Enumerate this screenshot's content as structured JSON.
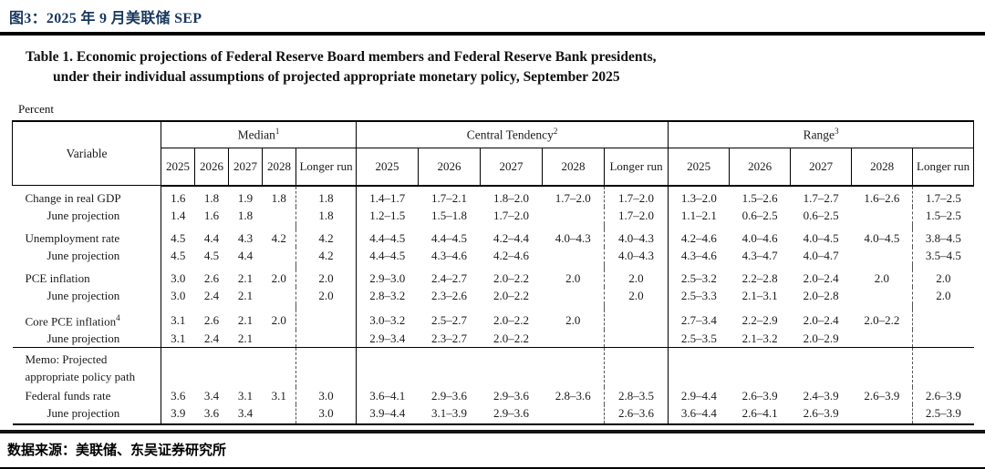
{
  "header": {
    "figure_title": "图3：2025 年 9 月美联储 SEP"
  },
  "table": {
    "title_line1": "Table 1. Economic projections of Federal Reserve Board members and Federal Reserve Bank presidents,",
    "title_line2": "under their individual assumptions of projected appropriate monetary policy, September 2025",
    "unit_label": "Percent",
    "variable_header": "Variable",
    "sections": [
      {
        "label": "Median",
        "sup": "1"
      },
      {
        "label": "Central Tendency",
        "sup": "2"
      },
      {
        "label": "Range",
        "sup": "3"
      }
    ],
    "years": [
      "2025",
      "2026",
      "2027",
      "2028",
      "Longer run"
    ],
    "rows": [
      {
        "label": "Change in real GDP",
        "cells": [
          "1.6",
          "1.8",
          "1.9",
          "1.8",
          "1.8",
          "1.4–1.7",
          "1.7–2.1",
          "1.8–2.0",
          "1.7–2.0",
          "1.7–2.0",
          "1.3–2.0",
          "1.5–2.6",
          "1.7–2.7",
          "1.6–2.6",
          "1.7–2.5"
        ]
      },
      {
        "label": "June projection",
        "indent": true,
        "gap_after": true,
        "cells": [
          "1.4",
          "1.6",
          "1.8",
          "",
          "1.8",
          "1.2–1.5",
          "1.5–1.8",
          "1.7–2.0",
          "",
          "1.7–2.0",
          "1.1–2.1",
          "0.6–2.5",
          "0.6–2.5",
          "",
          "1.5–2.5"
        ]
      },
      {
        "label": "Unemployment rate",
        "cells": [
          "4.5",
          "4.4",
          "4.3",
          "4.2",
          "4.2",
          "4.4–4.5",
          "4.4–4.5",
          "4.2–4.4",
          "4.0–4.3",
          "4.0–4.3",
          "4.2–4.6",
          "4.0–4.6",
          "4.0–4.5",
          "4.0–4.5",
          "3.8–4.5"
        ]
      },
      {
        "label": "June projection",
        "indent": true,
        "gap_after": true,
        "cells": [
          "4.5",
          "4.5",
          "4.4",
          "",
          "4.2",
          "4.4–4.5",
          "4.3–4.6",
          "4.2–4.6",
          "",
          "4.0–4.3",
          "4.3–4.6",
          "4.3–4.7",
          "4.0–4.7",
          "",
          "3.5–4.5"
        ]
      },
      {
        "label": "PCE inflation",
        "cells": [
          "3.0",
          "2.6",
          "2.1",
          "2.0",
          "2.0",
          "2.9–3.0",
          "2.4–2.7",
          "2.0–2.2",
          "2.0",
          "2.0",
          "2.5–3.2",
          "2.2–2.8",
          "2.0–2.4",
          "2.0",
          "2.0"
        ]
      },
      {
        "label": "June projection",
        "indent": true,
        "gap_after": true,
        "cells": [
          "3.0",
          "2.4",
          "2.1",
          "",
          "2.0",
          "2.8–3.2",
          "2.3–2.6",
          "2.0–2.2",
          "",
          "2.0",
          "2.5–3.3",
          "2.1–3.1",
          "2.0–2.8",
          "",
          "2.0"
        ]
      },
      {
        "label": "Core PCE inflation",
        "sup": "4",
        "cells": [
          "3.1",
          "2.6",
          "2.1",
          "2.0",
          "",
          "3.0–3.2",
          "2.5–2.7",
          "2.0–2.2",
          "2.0",
          "",
          "2.7–3.4",
          "2.2–2.9",
          "2.0–2.4",
          "2.0–2.2",
          ""
        ]
      },
      {
        "label": "June projection",
        "indent": true,
        "cells": [
          "3.1",
          "2.4",
          "2.1",
          "",
          "",
          "2.9–3.4",
          "2.3–2.7",
          "2.0–2.2",
          "",
          "",
          "2.5–3.5",
          "2.1–3.2",
          "2.0–2.9",
          "",
          ""
        ]
      },
      {
        "label": "Memo: Projected\nappropriate policy path",
        "memo": true,
        "rule_above": true,
        "cells": [
          "",
          "",
          "",
          "",
          "",
          "",
          "",
          "",
          "",
          "",
          "",
          "",
          "",
          "",
          ""
        ]
      },
      {
        "label": "Federal funds rate",
        "cells": [
          "3.6",
          "3.4",
          "3.1",
          "3.1",
          "3.0",
          "3.6–4.1",
          "2.9–3.6",
          "2.9–3.6",
          "2.8–3.6",
          "2.8–3.5",
          "2.9–4.4",
          "2.6–3.9",
          "2.4–3.9",
          "2.6–3.9",
          "2.6–3.9"
        ]
      },
      {
        "label": "June projection",
        "indent": true,
        "cells": [
          "3.9",
          "3.6",
          "3.4",
          "",
          "3.0",
          "3.9–4.4",
          "3.1–3.9",
          "2.9–3.6",
          "",
          "2.6–3.6",
          "3.6–4.4",
          "2.6–4.1",
          "2.6–3.9",
          "",
          "2.5–3.9"
        ]
      }
    ]
  },
  "footer": {
    "source": "数据来源：美联储、东吴证券研究所"
  },
  "colors": {
    "title_blue": "#17375e",
    "rule_black": "#000000"
  }
}
